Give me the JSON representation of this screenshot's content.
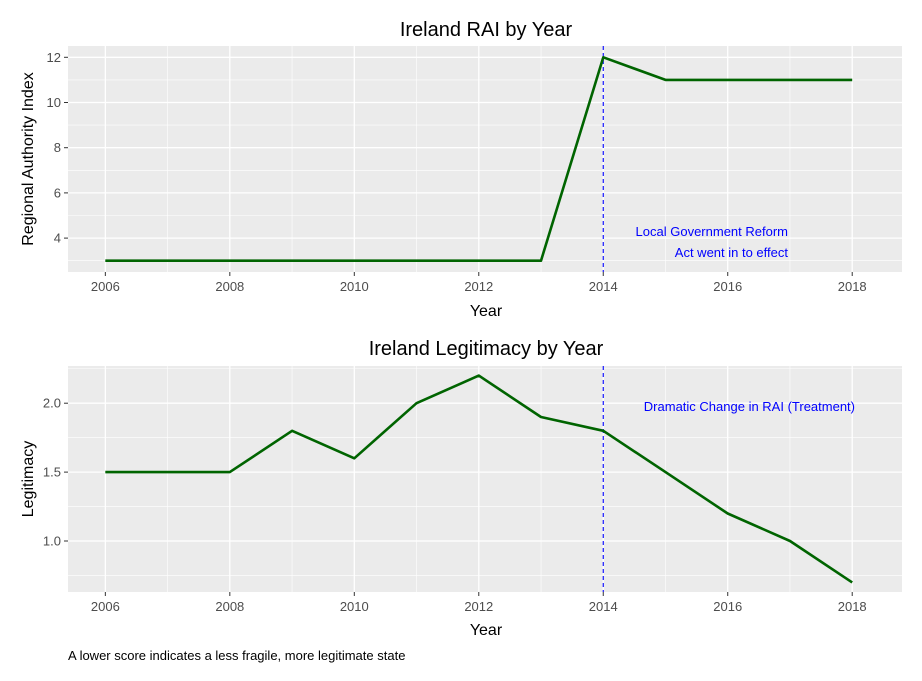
{
  "chart_data": [
    {
      "type": "line",
      "title": "Ireland RAI by Year",
      "xlabel": "Year",
      "ylabel": "Regional Authority Index",
      "x": [
        2006,
        2007,
        2008,
        2009,
        2010,
        2011,
        2012,
        2013,
        2014,
        2015,
        2016,
        2017,
        2018
      ],
      "series": [
        {
          "values": [
            3,
            3,
            3,
            3,
            3,
            3,
            3,
            3,
            12,
            11,
            11,
            11,
            11
          ]
        }
      ],
      "xlim": [
        2005.4,
        2018.8
      ],
      "ylim": [
        2.5,
        12.5
      ],
      "xticks": [
        "2006",
        "2008",
        "2010",
        "2012",
        "2014",
        "2016",
        "2018"
      ],
      "yticks": [
        "4",
        "6",
        "8",
        "10",
        "12"
      ],
      "grid": true,
      "vline": {
        "x": 2014
      },
      "annotation_lines": [
        "Local Government Reform",
        "Act went in to effect"
      ]
    },
    {
      "type": "line",
      "title": "Ireland Legitimacy by Year",
      "xlabel": "Year",
      "ylabel": "Legitimacy",
      "x": [
        2006,
        2007,
        2008,
        2009,
        2010,
        2011,
        2012,
        2013,
        2014,
        2015,
        2016,
        2017,
        2018
      ],
      "series": [
        {
          "values": [
            1.5,
            1.5,
            1.5,
            1.8,
            1.6,
            2.0,
            2.2,
            1.9,
            1.8,
            1.5,
            1.2,
            1.0,
            0.7
          ]
        }
      ],
      "xlim": [
        2005.4,
        2018.8
      ],
      "ylim": [
        0.63,
        2.27
      ],
      "xticks": [
        "2006",
        "2008",
        "2010",
        "2012",
        "2014",
        "2016",
        "2018"
      ],
      "yticks": [
        "1.0",
        "1.5",
        "2.0"
      ],
      "grid": true,
      "vline": {
        "x": 2014
      },
      "annotation_lines": [
        "Dramatic Change in RAI (Treatment)"
      ]
    }
  ],
  "caption": "A lower score indicates a less fragile, more legitimate state",
  "colors": {
    "line": "#006400",
    "panel_bg": "#EBEBEB",
    "grid": "#FFFFFF",
    "vline": "#0000FF",
    "annotation": "#0000FF",
    "tick_text": "#4D4D4D"
  }
}
